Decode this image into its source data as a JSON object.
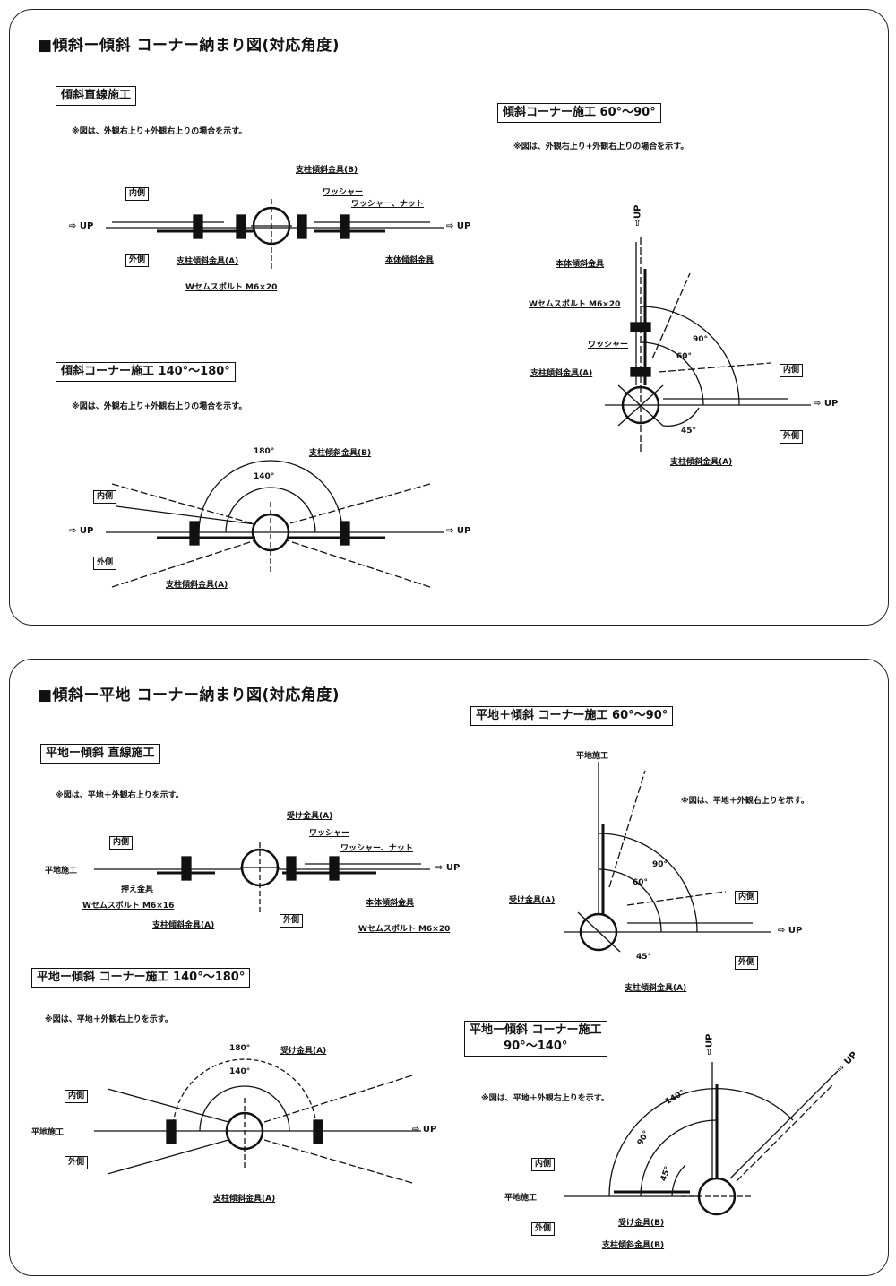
{
  "panel1": {
    "title": "■傾斜ー傾斜 コーナー納まり図(対応角度)",
    "straight": {
      "title": "傾斜直線施工",
      "note": "※図は、外観右上り+外観右上りの場合を示す。",
      "inner": "内側",
      "outer": "外側",
      "up": "⇨ UP",
      "labels": [
        "支柱傾斜金具(B)",
        "ワッシャー",
        "ワッシャー、ナット",
        "支柱傾斜金具(A)",
        "本体傾斜金具",
        "Wセムスボルト M6×20"
      ]
    },
    "corner140": {
      "title": "傾斜コーナー施工 140°〜180°",
      "note": "※図は、外観右上り+外観右上りの場合を示す。",
      "inner": "内側",
      "outer": "外側",
      "up": "⇨ UP",
      "angles": [
        "180°",
        "140°"
      ],
      "labels": [
        "支柱傾斜金具(B)",
        "支柱傾斜金具(A)"
      ]
    },
    "corner60": {
      "title": "傾斜コーナー施工 60°〜90°",
      "note": "※図は、外観右上り+外観右上りの場合を示す。",
      "inner": "内側",
      "outer": "外側",
      "up": "⇨ UP",
      "up_vertical": "⇨UP",
      "angles": [
        "90°",
        "60°",
        "45°"
      ],
      "labels": [
        "本体傾斜金具",
        "Wセムスボルト M6×20",
        "ワッシャー",
        "支柱傾斜金具(A)",
        "支柱傾斜金具(A)"
      ]
    }
  },
  "panel2": {
    "title": "■傾斜ー平地 コーナー納まり図(対応角度)",
    "straight": {
      "title": "平地ー傾斜 直線施工",
      "note": "※図は、平地＋外観右上りを示す。",
      "inner": "内側",
      "outer": "外側",
      "up": "⇨ UP",
      "flat": "平地施工",
      "labels": [
        "受け金具(A)",
        "ワッシャー",
        "ワッシャー、ナット",
        "押え金具",
        "Wセムスボルト M6×16",
        "本体傾斜金具",
        "支柱傾斜金具(A)",
        "Wセムスボルト M6×20"
      ]
    },
    "corner140": {
      "title": "平地ー傾斜 コーナー施工 140°〜180°",
      "note": "※図は、平地＋外観右上りを示す。",
      "inner": "内側",
      "outer": "外側",
      "up": "⇨ UP",
      "flat": "平地施工",
      "angles": [
        "180°",
        "140°"
      ],
      "labels": [
        "受け金具(A)",
        "支柱傾斜金具(A)"
      ]
    },
    "corner60": {
      "title": "平地＋傾斜 コーナー施工 60°〜90°",
      "note": "※図は、平地＋外観右上りを示す。",
      "inner": "内側",
      "outer": "外側",
      "up": "⇨ UP",
      "flat": "平地施工",
      "angles": [
        "90°",
        "60°",
        "45°"
      ],
      "labels": [
        "受け金具(A)",
        "支柱傾斜金具(A)"
      ]
    },
    "corner90": {
      "title_line1": "平地ー傾斜 コーナー施工",
      "title_line2": "90°〜140°",
      "note": "※図は、平地＋外観右上りを示す。",
      "inner": "内側",
      "outer": "外側",
      "up": "⇨ UP",
      "up_vertical": "⇨UP",
      "flat": "平地施工",
      "angles": [
        "140°",
        "90°",
        "45°"
      ],
      "labels": [
        "受け金具(B)",
        "支柱傾斜金具(B)"
      ]
    }
  }
}
